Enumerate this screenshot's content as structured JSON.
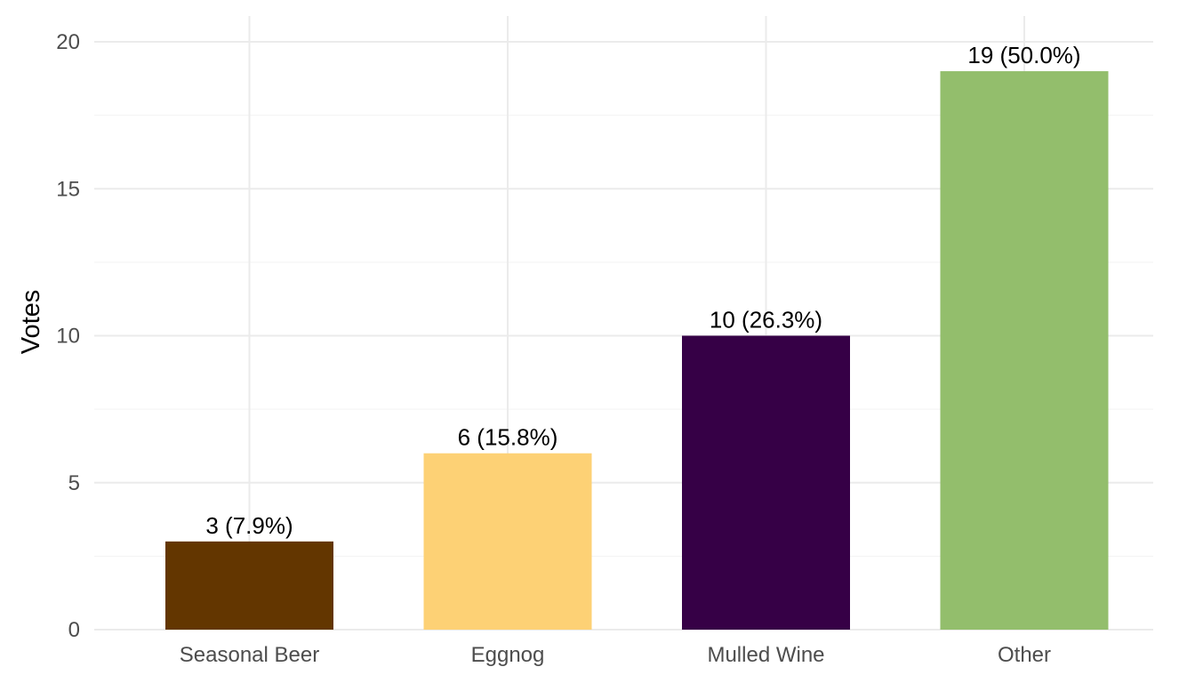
{
  "chart_data": {
    "type": "bar",
    "title": "",
    "xlabel": "",
    "ylabel": "Votes",
    "categories": [
      "Seasonal Beer",
      "Eggnog",
      "Mulled Wine",
      "Other"
    ],
    "values": [
      3,
      6,
      10,
      19
    ],
    "data_labels": [
      "3 (7.9%)",
      "6 (15.8%)",
      "10 (26.3%)",
      "19 (50.0%)"
    ],
    "colors": [
      "#633600",
      "#FDD175",
      "#360046",
      "#93BE6C"
    ],
    "ylim": [
      0,
      20
    ],
    "yticks": [
      0,
      5,
      10,
      15,
      20
    ],
    "grid": true,
    "legend": "none"
  }
}
